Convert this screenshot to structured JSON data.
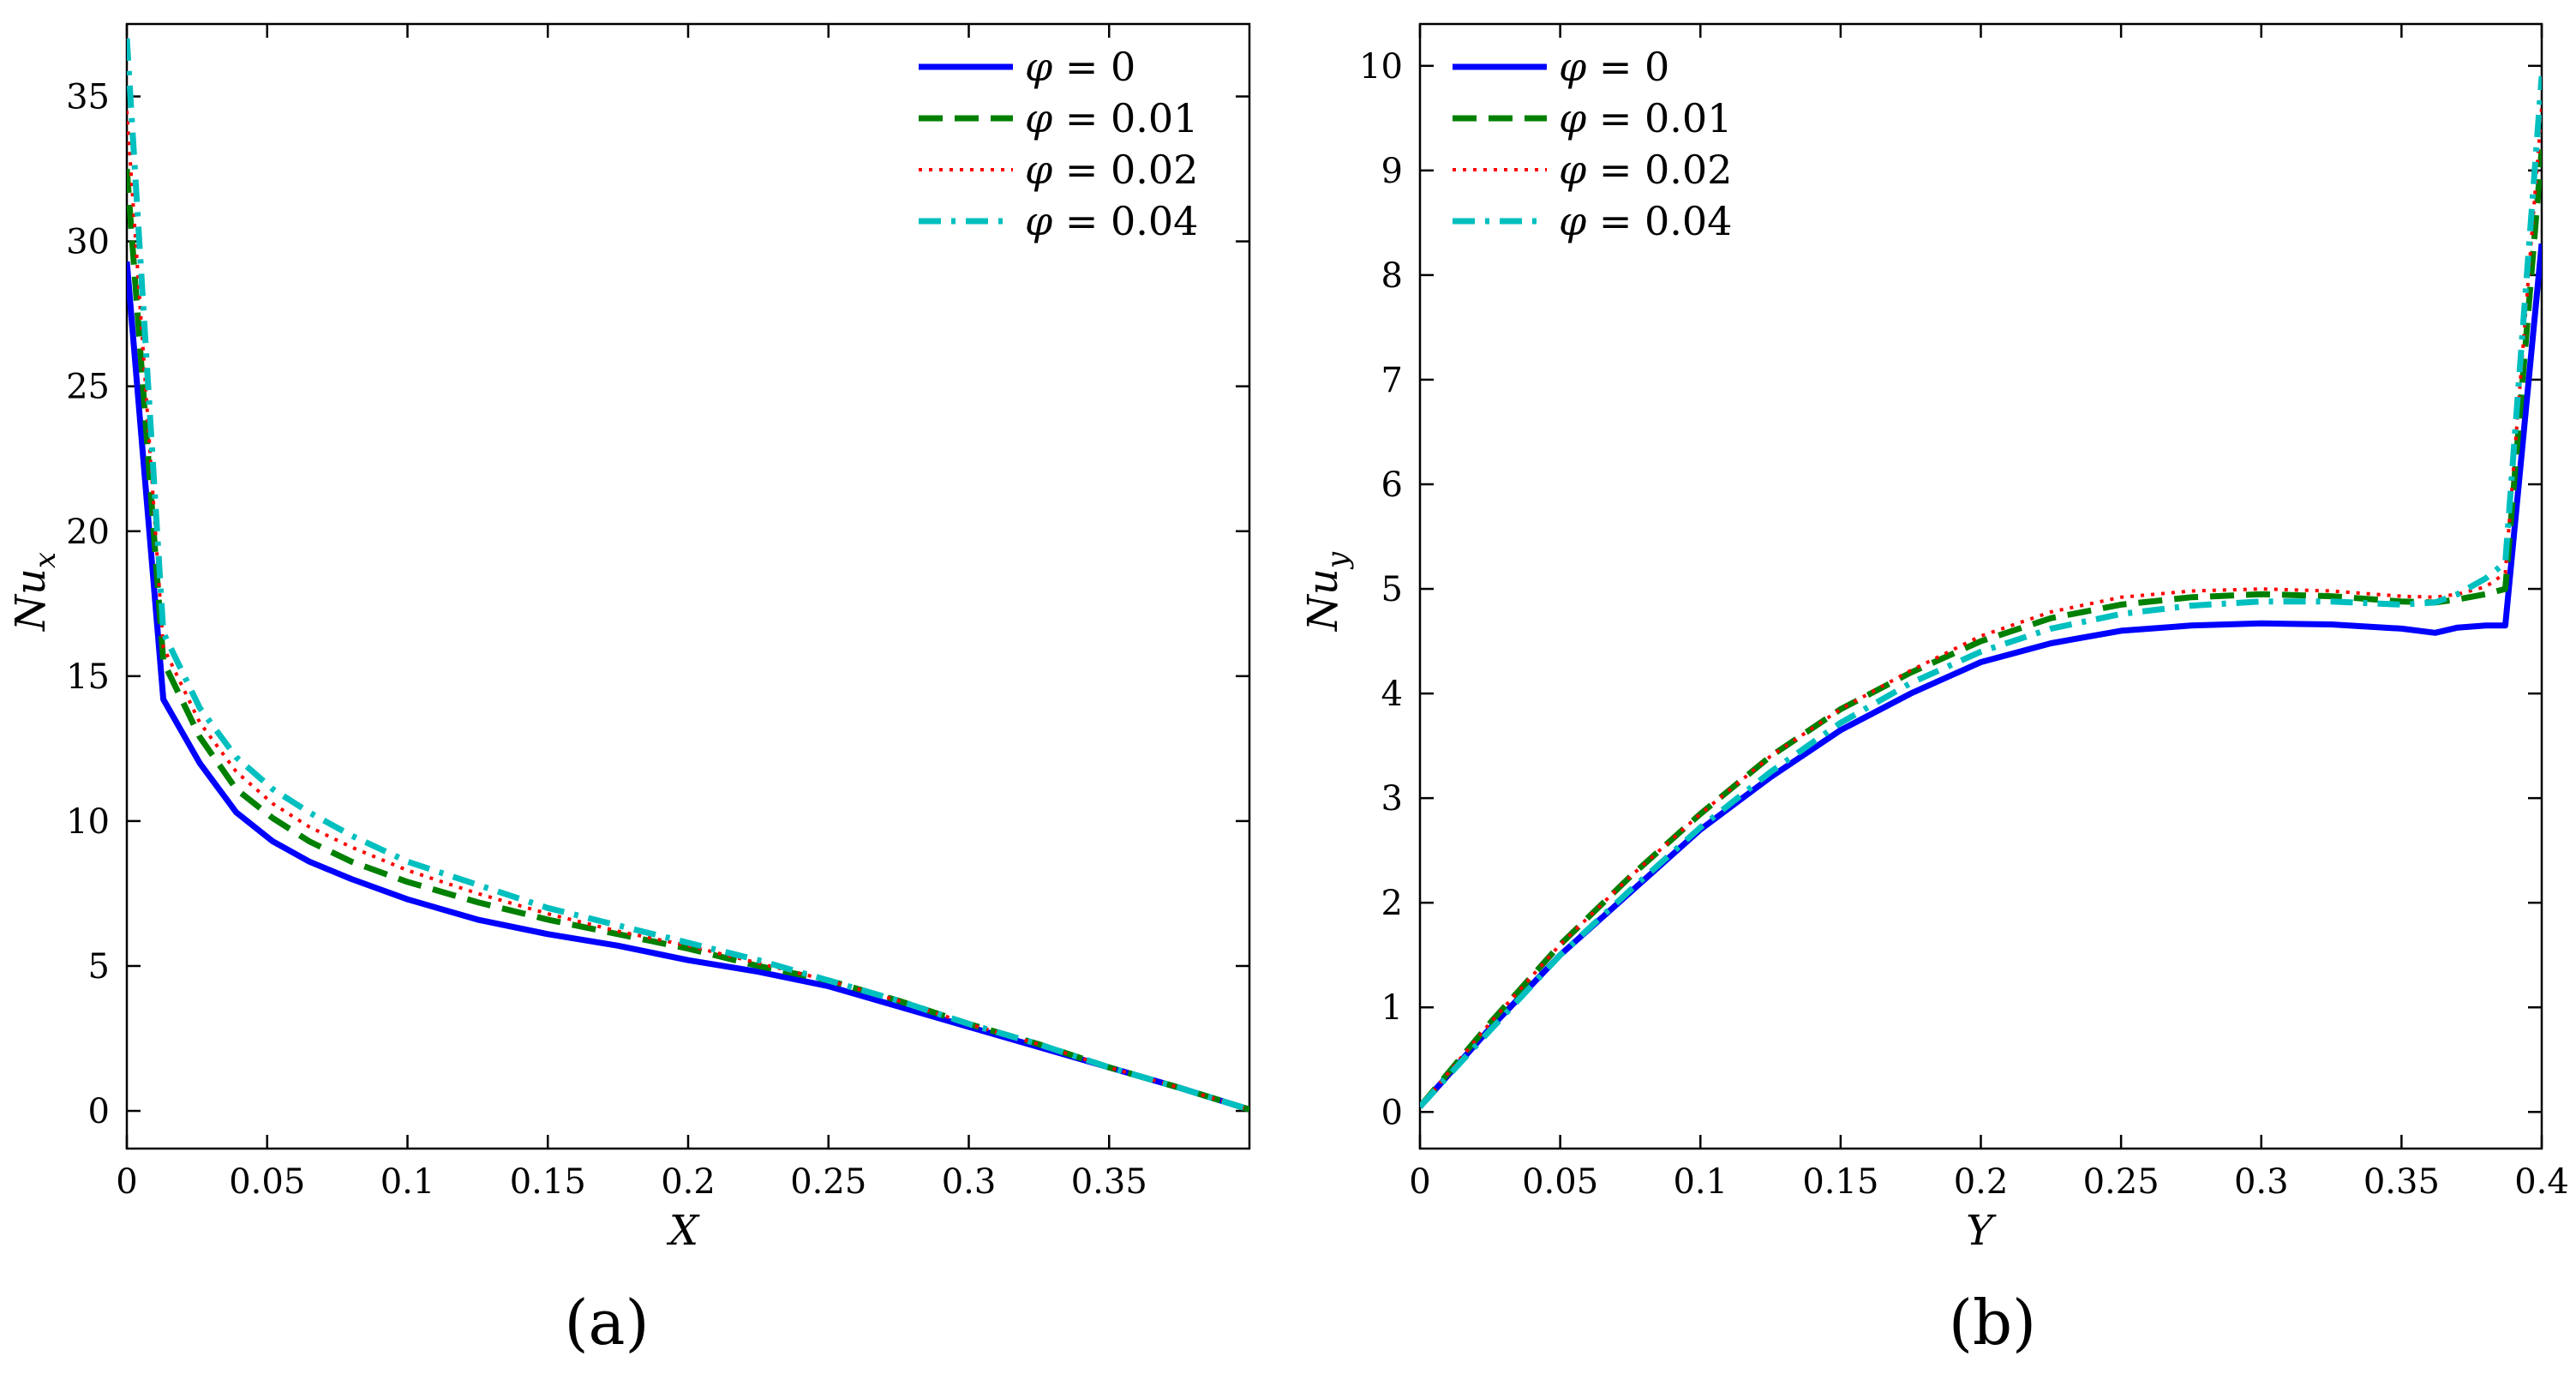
{
  "chart_data": [
    {
      "type": "line",
      "panel_label": "(a)",
      "xlabel": "X",
      "ylabel_main": "Nu",
      "ylabel_sub": "x",
      "xlim": [
        0,
        0.4
      ],
      "ylim": [
        -1.3,
        37.5
      ],
      "xticks": [
        0,
        0.05,
        0.1,
        0.15,
        0.2,
        0.25,
        0.3,
        0.35
      ],
      "xtick_labels": [
        "0",
        "0.05",
        "0.1",
        "0.15",
        "0.2",
        "0.25",
        "0.3",
        "0.35"
      ],
      "yticks": [
        0,
        5,
        10,
        15,
        20,
        25,
        30,
        35
      ],
      "ytick_labels": [
        "0",
        "5",
        "10",
        "15",
        "20",
        "25",
        "30",
        "35"
      ],
      "legend_position": "top-right",
      "series": [
        {
          "name": "φ = 0",
          "phi": "0",
          "color": "#0000ff",
          "style": "solid",
          "x": [
            0,
            0.013,
            0.026,
            0.039,
            0.052,
            0.065,
            0.08,
            0.1,
            0.125,
            0.15,
            0.175,
            0.2,
            0.225,
            0.25,
            0.275,
            0.3,
            0.325,
            0.35,
            0.375,
            0.4
          ],
          "y": [
            29.3,
            14.2,
            12.0,
            10.3,
            9.3,
            8.6,
            8.0,
            7.3,
            6.6,
            6.1,
            5.7,
            5.2,
            4.8,
            4.3,
            3.6,
            2.9,
            2.2,
            1.5,
            0.8,
            0.05
          ]
        },
        {
          "name": "φ = 0.01",
          "phi": "0.01",
          "color": "#008000",
          "style": "dashed",
          "x": [
            0,
            0.013,
            0.026,
            0.039,
            0.052,
            0.065,
            0.08,
            0.1,
            0.125,
            0.15,
            0.175,
            0.2,
            0.225,
            0.25,
            0.275,
            0.3,
            0.325,
            0.35,
            0.375,
            0.4
          ],
          "y": [
            32.5,
            15.5,
            12.9,
            11.1,
            10.1,
            9.3,
            8.6,
            7.9,
            7.2,
            6.6,
            6.1,
            5.6,
            5.0,
            4.5,
            3.8,
            3.0,
            2.3,
            1.5,
            0.8,
            0.05
          ]
        },
        {
          "name": "φ = 0.02",
          "phi": "0.02",
          "color": "#ff0000",
          "style": "dotted",
          "x": [
            0,
            0.013,
            0.026,
            0.039,
            0.052,
            0.065,
            0.08,
            0.1,
            0.125,
            0.15,
            0.175,
            0.2,
            0.225,
            0.25,
            0.275,
            0.3,
            0.325,
            0.35,
            0.375,
            0.4
          ],
          "y": [
            34.5,
            16.0,
            13.4,
            11.7,
            10.6,
            9.8,
            9.1,
            8.3,
            7.5,
            6.8,
            6.2,
            5.7,
            5.1,
            4.5,
            3.8,
            3.0,
            2.3,
            1.5,
            0.8,
            0.05
          ]
        },
        {
          "name": "φ = 0.04",
          "phi": "0.04",
          "color": "#00bfbf",
          "style": "dashdot",
          "x": [
            0,
            0.013,
            0.026,
            0.039,
            0.052,
            0.065,
            0.08,
            0.1,
            0.125,
            0.15,
            0.175,
            0.2,
            0.225,
            0.25,
            0.275,
            0.3,
            0.325,
            0.35,
            0.375,
            0.4
          ],
          "y": [
            37.0,
            16.5,
            13.9,
            12.2,
            11.1,
            10.3,
            9.5,
            8.6,
            7.8,
            7.0,
            6.4,
            5.8,
            5.2,
            4.5,
            3.8,
            3.0,
            2.3,
            1.5,
            0.8,
            0.05
          ]
        }
      ]
    },
    {
      "type": "line",
      "panel_label": "(b)",
      "xlabel": "Y",
      "ylabel_main": "Nu",
      "ylabel_sub": "y",
      "xlim": [
        0,
        0.4
      ],
      "ylim": [
        -0.35,
        10.4
      ],
      "xticks": [
        0,
        0.05,
        0.1,
        0.15,
        0.2,
        0.25,
        0.3,
        0.35,
        0.4
      ],
      "xtick_labels": [
        "0",
        "0.05",
        "0.1",
        "0.15",
        "0.2",
        "0.25",
        "0.3",
        "0.35",
        "0.4"
      ],
      "yticks": [
        0,
        1,
        2,
        3,
        4,
        5,
        6,
        7,
        8,
        9,
        10
      ],
      "ytick_labels": [
        "0",
        "1",
        "2",
        "3",
        "4",
        "5",
        "6",
        "7",
        "8",
        "9",
        "10"
      ],
      "legend_position": "top-left",
      "series": [
        {
          "name": "φ = 0",
          "phi": "0",
          "color": "#0000ff",
          "style": "solid",
          "x": [
            0,
            0.025,
            0.05,
            0.075,
            0.1,
            0.125,
            0.15,
            0.175,
            0.2,
            0.225,
            0.25,
            0.275,
            0.3,
            0.325,
            0.35,
            0.362,
            0.37,
            0.38,
            0.387,
            0.4
          ],
          "y": [
            0.05,
            0.8,
            1.5,
            2.1,
            2.7,
            3.2,
            3.65,
            4.0,
            4.3,
            4.48,
            4.6,
            4.65,
            4.67,
            4.66,
            4.62,
            4.58,
            4.63,
            4.65,
            4.65,
            8.3
          ]
        },
        {
          "name": "φ = 0.01",
          "phi": "0.01",
          "color": "#008000",
          "style": "dashed",
          "x": [
            0,
            0.025,
            0.05,
            0.075,
            0.1,
            0.125,
            0.15,
            0.175,
            0.2,
            0.225,
            0.25,
            0.275,
            0.3,
            0.325,
            0.35,
            0.362,
            0.37,
            0.38,
            0.387,
            0.4
          ],
          "y": [
            0.05,
            0.85,
            1.6,
            2.25,
            2.85,
            3.4,
            3.85,
            4.2,
            4.5,
            4.72,
            4.85,
            4.92,
            4.95,
            4.93,
            4.88,
            4.87,
            4.9,
            4.95,
            5.0,
            9.2
          ]
        },
        {
          "name": "φ = 0.02",
          "phi": "0.02",
          "color": "#ff0000",
          "style": "dotted",
          "x": [
            0,
            0.025,
            0.05,
            0.075,
            0.1,
            0.125,
            0.15,
            0.175,
            0.2,
            0.225,
            0.25,
            0.275,
            0.3,
            0.325,
            0.35,
            0.362,
            0.37,
            0.38,
            0.387,
            0.4
          ],
          "y": [
            0.05,
            0.85,
            1.6,
            2.25,
            2.85,
            3.4,
            3.85,
            4.22,
            4.55,
            4.78,
            4.92,
            4.98,
            5.0,
            4.98,
            4.93,
            4.92,
            4.95,
            5.02,
            5.15,
            9.6
          ]
        },
        {
          "name": "φ = 0.04",
          "phi": "0.04",
          "color": "#00bfbf",
          "style": "dashdot",
          "x": [
            0,
            0.025,
            0.05,
            0.075,
            0.1,
            0.125,
            0.15,
            0.175,
            0.2,
            0.225,
            0.25,
            0.275,
            0.3,
            0.325,
            0.35,
            0.362,
            0.37,
            0.38,
            0.387,
            0.4
          ],
          "y": [
            0.05,
            0.78,
            1.5,
            2.12,
            2.72,
            3.25,
            3.72,
            4.1,
            4.4,
            4.62,
            4.76,
            4.84,
            4.88,
            4.88,
            4.85,
            4.87,
            4.95,
            5.1,
            5.25,
            9.9
          ]
        }
      ]
    }
  ]
}
